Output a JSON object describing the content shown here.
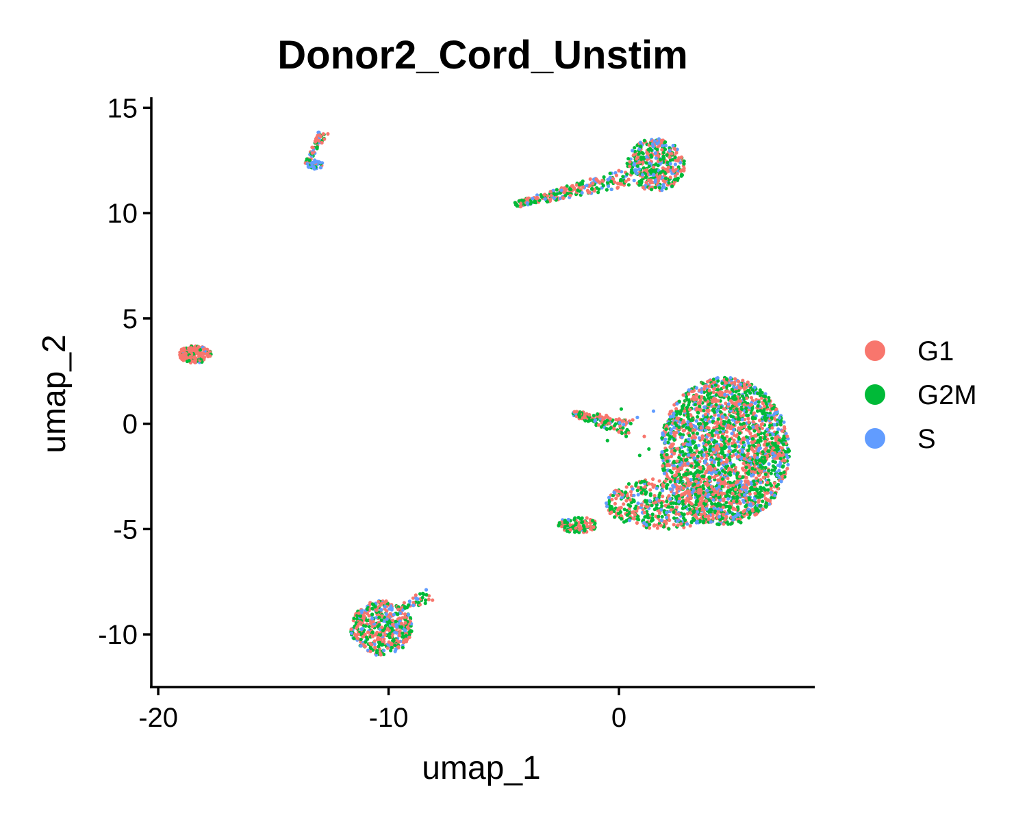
{
  "chart_data": {
    "type": "scatter",
    "title": "Donor2_Cord_Unstim",
    "xlabel": "umap_1",
    "ylabel": "umap_2",
    "xlim": [
      -20.3,
      8.5
    ],
    "ylim": [
      -12.5,
      15.5
    ],
    "x_ticks": [
      {
        "value": -20,
        "label": "-20"
      },
      {
        "value": -10,
        "label": "-10"
      },
      {
        "value": 0,
        "label": "0"
      }
    ],
    "y_ticks": [
      {
        "value": 15,
        "label": "15"
      },
      {
        "value": 10,
        "label": "10"
      },
      {
        "value": 5,
        "label": "5"
      },
      {
        "value": 0,
        "label": "0"
      },
      {
        "value": -5,
        "label": "-5"
      },
      {
        "value": -10,
        "label": "-10"
      }
    ],
    "grid": false,
    "legend_position": "right",
    "series": [
      {
        "name": "G1",
        "color": "#F8766D"
      },
      {
        "name": "G2M",
        "color": "#00BA38"
      },
      {
        "name": "S",
        "color": "#619CFF"
      }
    ],
    "clusters": [
      {
        "shape": "ellipse",
        "cx": 4.6,
        "cy": -1.3,
        "rx": 2.8,
        "ry": 3.5,
        "n": 2400,
        "mix": [
          0.38,
          0.42,
          0.2
        ]
      },
      {
        "shape": "ellipse",
        "cx": 2.0,
        "cy": -3.8,
        "rx": 2.6,
        "ry": 1.2,
        "n": 520,
        "mix": [
          0.45,
          0.42,
          0.13
        ]
      },
      {
        "shape": "ellipse",
        "cx": 1.6,
        "cy": 12.3,
        "rx": 1.25,
        "ry": 1.25,
        "n": 420,
        "mix": [
          0.42,
          0.4,
          0.18
        ]
      },
      {
        "shape": "line",
        "x1": -4.5,
        "y1": 10.4,
        "x2": 0.4,
        "y2": 11.7,
        "width": 0.45,
        "n": 260,
        "mix": [
          0.4,
          0.48,
          0.12
        ]
      },
      {
        "shape": "line",
        "x1": -2.0,
        "y1": 0.5,
        "x2": 0.5,
        "y2": -0.2,
        "width": 0.45,
        "n": 150,
        "mix": [
          0.4,
          0.5,
          0.1
        ]
      },
      {
        "shape": "ellipse",
        "cx": -1.8,
        "cy": -4.8,
        "rx": 0.85,
        "ry": 0.38,
        "n": 110,
        "mix": [
          0.38,
          0.55,
          0.07
        ]
      },
      {
        "shape": "ellipse",
        "cx": -10.3,
        "cy": -9.7,
        "rx": 1.35,
        "ry": 1.3,
        "n": 520,
        "mix": [
          0.45,
          0.38,
          0.17
        ]
      },
      {
        "shape": "line",
        "x1": -9.6,
        "y1": -8.8,
        "x2": -8.2,
        "y2": -8.1,
        "width": 0.35,
        "n": 45,
        "mix": [
          0.35,
          0.5,
          0.15
        ]
      },
      {
        "shape": "ellipse",
        "cx": -18.4,
        "cy": 3.3,
        "rx": 0.7,
        "ry": 0.42,
        "n": 170,
        "mix": [
          0.82,
          0.13,
          0.05
        ]
      },
      {
        "shape": "line",
        "x1": -13.6,
        "y1": 12.3,
        "x2": -12.8,
        "y2": 13.9,
        "width": 0.22,
        "n": 65,
        "mix": [
          0.3,
          0.5,
          0.2
        ]
      },
      {
        "shape": "ellipse",
        "cx": -13.2,
        "cy": 12.3,
        "rx": 0.35,
        "ry": 0.22,
        "n": 35,
        "mix": [
          0.1,
          0.25,
          0.65
        ]
      }
    ],
    "scatter_points": [
      {
        "x": -0.5,
        "y": -0.8,
        "s": 1
      },
      {
        "x": 0.8,
        "y": 0.3,
        "s": 2
      },
      {
        "x": 1.3,
        "y": -1.2,
        "s": 1
      },
      {
        "x": 1.9,
        "y": -2.0,
        "s": 0
      },
      {
        "x": 0.3,
        "y": -0.4,
        "s": 1
      },
      {
        "x": 1.5,
        "y": 0.6,
        "s": 2
      },
      {
        "x": 2.2,
        "y": 0.2,
        "s": 1
      },
      {
        "x": 1.1,
        "y": -0.6,
        "s": 0
      },
      {
        "x": 2.6,
        "y": -1.8,
        "s": 1
      },
      {
        "x": -0.3,
        "y": -3.6,
        "s": 0
      },
      {
        "x": 1.2,
        "y": -2.9,
        "s": 1
      },
      {
        "x": 2.0,
        "y": -0.9,
        "s": 2
      },
      {
        "x": 0.9,
        "y": -1.5,
        "s": 1
      },
      {
        "x": 2.4,
        "y": 0.9,
        "s": 0
      },
      {
        "x": 0.1,
        "y": 0.7,
        "s": 1
      }
    ]
  }
}
